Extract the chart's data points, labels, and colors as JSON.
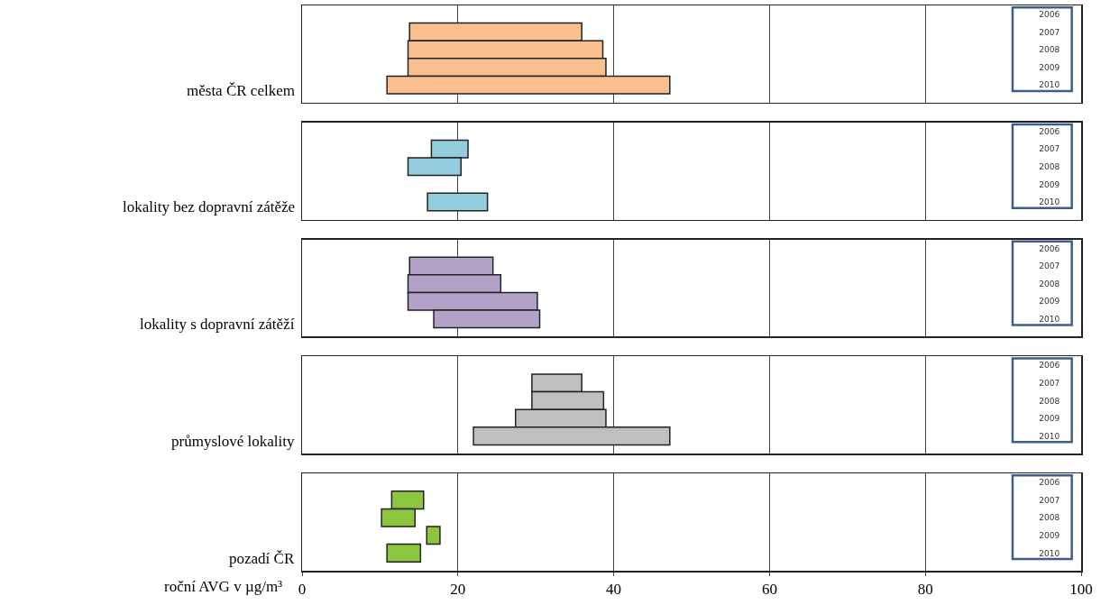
{
  "chart_data": [
    {
      "type": "bar",
      "orientation": "horizontal",
      "ylabel": "města ČR celkem",
      "categories": [
        "2006",
        "2007",
        "2008",
        "2009",
        "2010"
      ],
      "base": [
        null,
        13.8,
        13.6,
        13.6,
        10.9
      ],
      "values": [
        null,
        22.1,
        25.0,
        25.4,
        36.3
      ],
      "color": "#f9bf8f",
      "xlim": [
        0,
        100
      ],
      "xticks": [
        0,
        20,
        40,
        60,
        80,
        100
      ],
      "grid": "x",
      "tick_labels": "y"
    },
    {
      "type": "bar",
      "orientation": "horizontal",
      "ylabel": "lokality bez dopravní zátěže",
      "categories": [
        "2006",
        "2007",
        "2008",
        "2009",
        "2010"
      ],
      "base": [
        null,
        16.6,
        13.6,
        null,
        16.1
      ],
      "values": [
        null,
        4.7,
        6.8,
        null,
        7.7
      ],
      "color": "#93cddd",
      "xlim": [
        0,
        100
      ],
      "xticks": [
        0,
        20,
        40,
        60,
        80,
        100
      ],
      "grid": "x",
      "tick_labels": "y"
    },
    {
      "type": "bar",
      "orientation": "horizontal",
      "ylabel": "lokality s dopravní zátěží",
      "categories": [
        "2006",
        "2007",
        "2008",
        "2009",
        "2010"
      ],
      "base": [
        null,
        13.8,
        13.6,
        13.6,
        16.9
      ],
      "values": [
        null,
        10.7,
        11.9,
        16.6,
        13.6
      ],
      "color": "#b3a2c7",
      "xlim": [
        0,
        100
      ],
      "xticks": [
        0,
        20,
        40,
        60,
        80,
        100
      ],
      "grid": "x",
      "tick_labels": "y"
    },
    {
      "type": "bar",
      "orientation": "horizontal",
      "ylabel": "průmyslové lokality",
      "categories": [
        "2006",
        "2007",
        "2008",
        "2009",
        "2010"
      ],
      "base": [
        null,
        29.5,
        29.5,
        27.4,
        22.0
      ],
      "values": [
        null,
        6.4,
        9.2,
        11.6,
        25.2
      ],
      "color": "#bfbfbf",
      "xlim": [
        0,
        100
      ],
      "xticks": [
        0,
        20,
        40,
        60,
        80,
        100
      ],
      "grid": "x",
      "tick_labels": "y"
    },
    {
      "type": "bar",
      "orientation": "horizontal",
      "ylabel": "pozadí ČR",
      "xlabel": "roční AVG v µg/m³",
      "categories": [
        "2006",
        "2007",
        "2008",
        "2009",
        "2010"
      ],
      "base": [
        null,
        11.5,
        10.2,
        16.0,
        10.9
      ],
      "values": [
        null,
        4.1,
        4.3,
        1.7,
        4.3
      ],
      "color": "#8cc63f",
      "xlim": [
        0,
        100
      ],
      "xticks": [
        0,
        20,
        40,
        60,
        80,
        100
      ],
      "grid": "x"
    }
  ]
}
